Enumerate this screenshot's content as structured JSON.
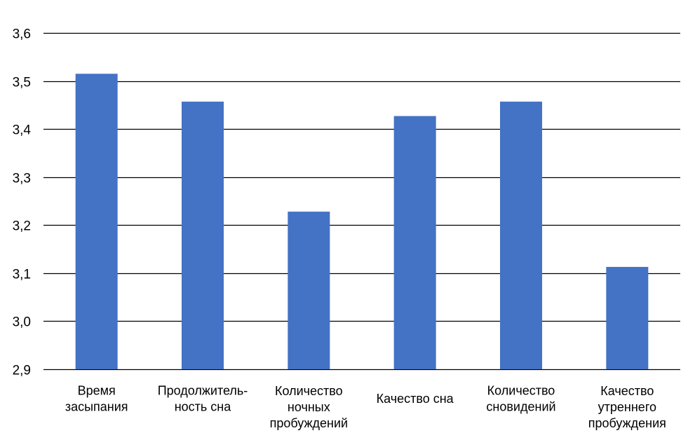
{
  "chart_data": {
    "type": "bar",
    "categories": [
      [
        "Время",
        "засыпания"
      ],
      [
        "Продолжитель-",
        "ность сна"
      ],
      [
        "Количество",
        "ночных",
        "пробуждений"
      ],
      [
        "Качество сна"
      ],
      [
        "Количество",
        "сновидений"
      ],
      [
        "Качество",
        "утреннего",
        "пробуждения"
      ]
    ],
    "values": [
      3.515,
      3.457,
      3.228,
      3.427,
      3.457,
      3.113
    ],
    "ylim": [
      2.9,
      3.6
    ],
    "yticks": [
      2.9,
      3.0,
      3.1,
      3.2,
      3.3,
      3.4,
      3.5,
      3.6
    ],
    "ytick_labels": [
      "2,9",
      "3,0",
      "3,1",
      "3,2",
      "3,3",
      "3,4",
      "3,5",
      "3,6"
    ],
    "grid": true,
    "legend": "none",
    "bar_color": "#4472C4",
    "grid_color": "#000000"
  }
}
